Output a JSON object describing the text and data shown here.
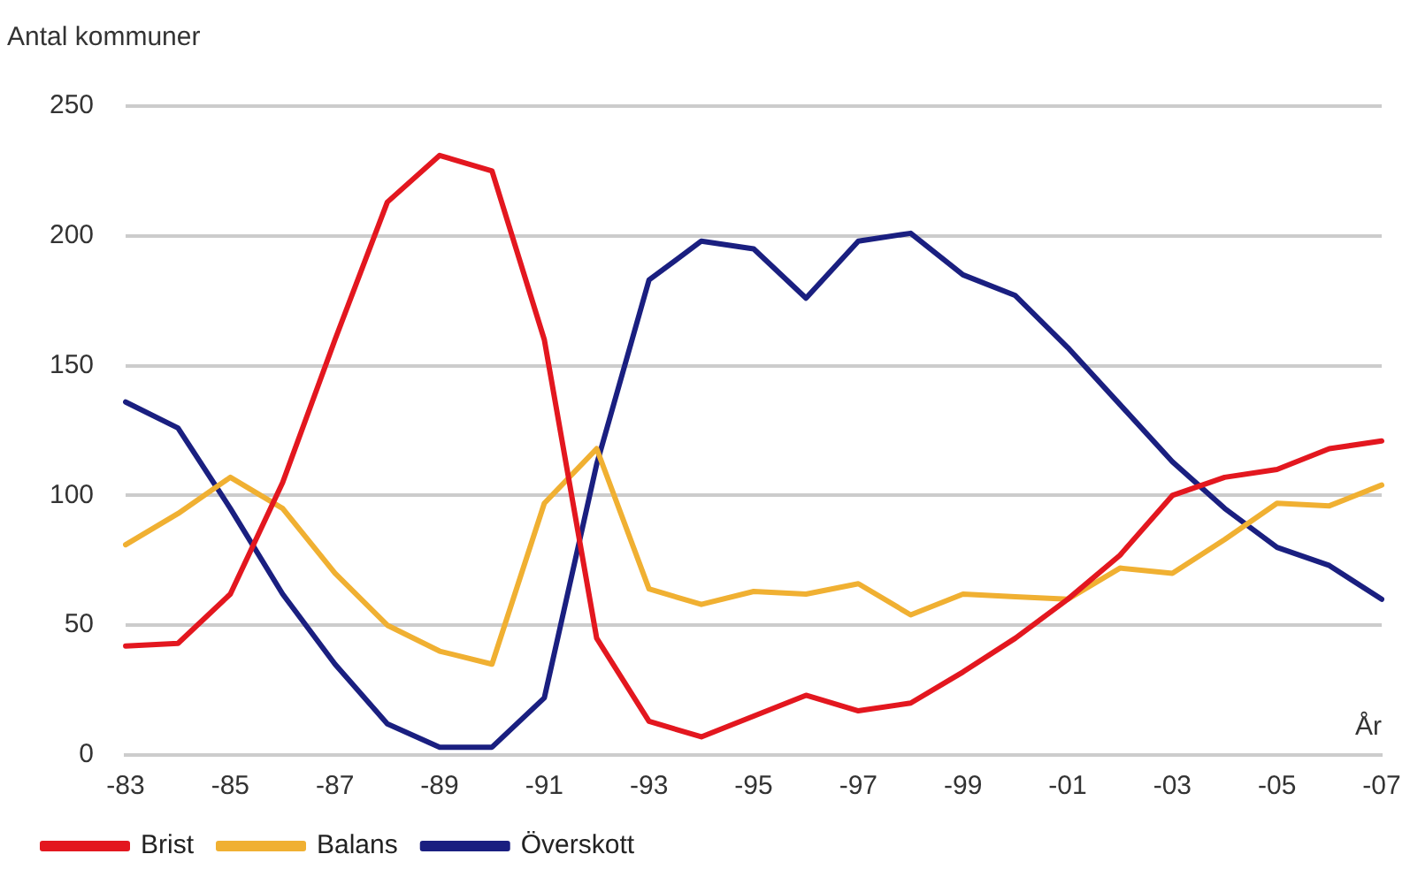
{
  "chart_data": {
    "type": "line",
    "ylabel": "Antal kommuner",
    "xlabel": "År",
    "categories": [
      "-83",
      null,
      "-85",
      null,
      "-87",
      null,
      "-89",
      null,
      "-91",
      null,
      "-93",
      null,
      "-95",
      null,
      "-97",
      null,
      "-99",
      null,
      "-01",
      null,
      "-03",
      null,
      "-05",
      null,
      "-07"
    ],
    "series": [
      {
        "name": "Brist",
        "color": "#e3171f",
        "values": [
          42,
          43,
          62,
          105,
          160,
          213,
          231,
          225,
          160,
          45,
          13,
          7,
          15,
          23,
          17,
          20,
          32,
          45,
          60,
          77,
          100,
          107,
          110,
          118,
          121
        ]
      },
      {
        "name": "Balans",
        "color": "#f0b032",
        "values": [
          81,
          93,
          107,
          95,
          70,
          50,
          40,
          35,
          97,
          118,
          64,
          58,
          63,
          62,
          66,
          54,
          62,
          61,
          60,
          72,
          70,
          83,
          97,
          96,
          104
        ]
      },
      {
        "name": "Överskott",
        "color": "#1a1f80",
        "values": [
          136,
          126,
          95,
          62,
          35,
          12,
          3,
          3,
          22,
          112,
          183,
          198,
          195,
          176,
          198,
          201,
          185,
          177,
          157,
          135,
          113,
          95,
          80,
          73,
          60
        ]
      }
    ],
    "ylim": [
      0,
      250
    ],
    "yticks": [
      0,
      50,
      100,
      150,
      200,
      250
    ],
    "grid": "y",
    "legend": "bottom",
    "marker": "none",
    "line_style": "solid"
  }
}
